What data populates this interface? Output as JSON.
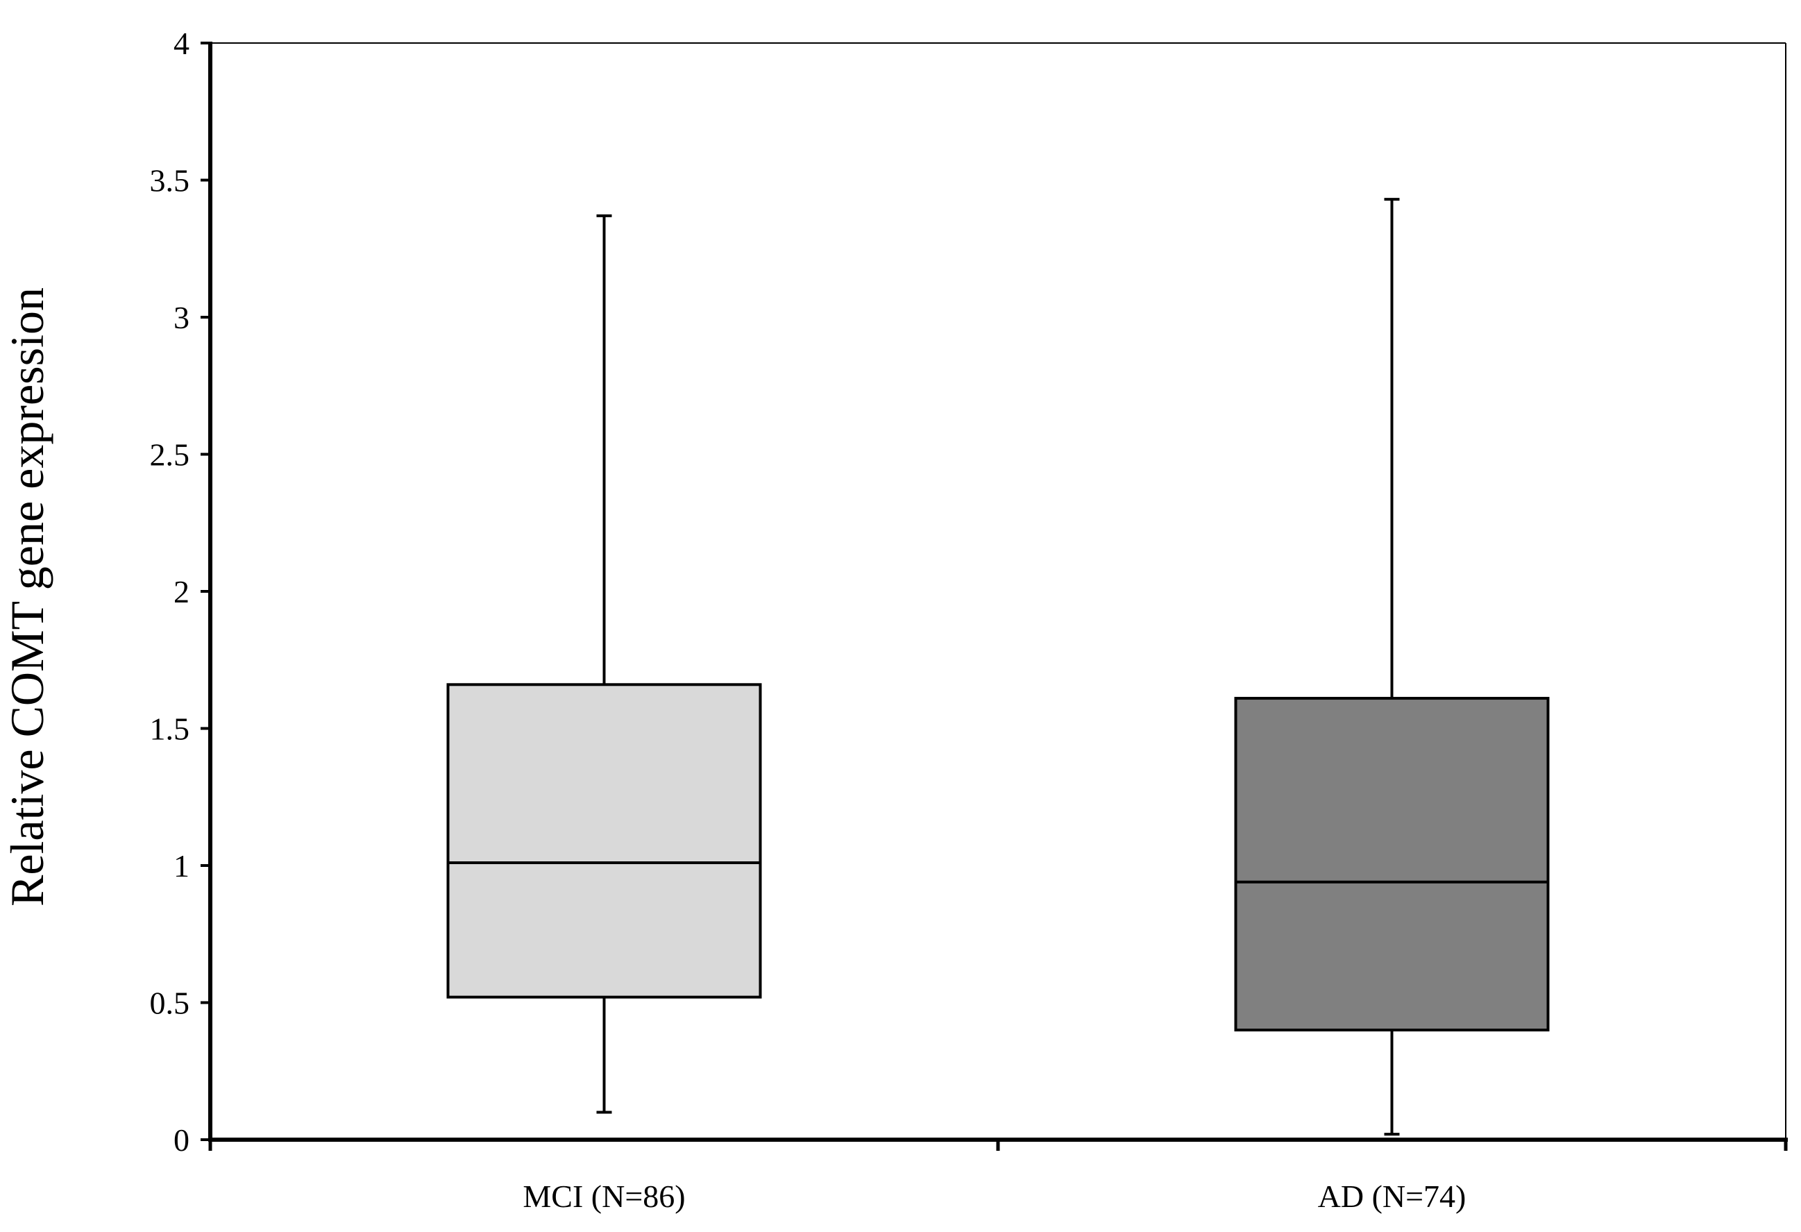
{
  "chart_data": {
    "type": "box",
    "title": "",
    "xlabel": "",
    "ylabel": "Relative COMT gene expression",
    "ylim": [
      0,
      4
    ],
    "yticks": [
      "0",
      "0.5",
      "1",
      "1.5",
      "2",
      "2.5",
      "3",
      "3.5",
      "4"
    ],
    "grid": false,
    "legend": "none",
    "categories": [
      "MCI (N=86)",
      "AD (N=74)"
    ],
    "series": [
      {
        "category": "MCI (N=86)",
        "min": 0.1,
        "q1": 0.52,
        "median": 1.01,
        "q3": 1.66,
        "max": 3.37,
        "color": "#d9d9d9"
      },
      {
        "category": "AD (N=74)",
        "min": 0.02,
        "q1": 0.4,
        "median": 0.94,
        "q3": 1.61,
        "max": 3.43,
        "color": "#808080"
      }
    ]
  }
}
